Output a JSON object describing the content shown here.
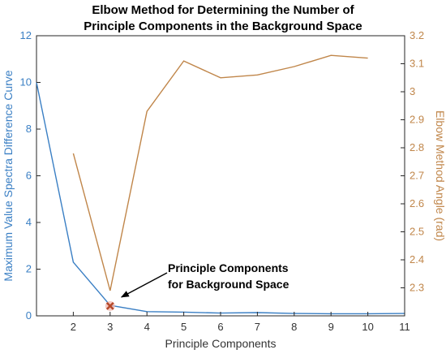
{
  "chart_data": {
    "type": "line",
    "title_lines": [
      "Elbow Method for Determining the Number of",
      "Principle Components in the Background Space"
    ],
    "xlabel": "Principle Components",
    "x_ticks": [
      2,
      3,
      4,
      5,
      6,
      7,
      8,
      9,
      10,
      11
    ],
    "xlim": [
      1,
      11
    ],
    "left_axis": {
      "label": "Maximum Value Spectra Difference Curve",
      "ylim": [
        0,
        12
      ],
      "ticks": [
        0,
        2,
        4,
        6,
        8,
        10,
        12
      ],
      "color": "#3a7fc4"
    },
    "right_axis": {
      "label": "Elbow Method Angle (rad)",
      "ylim": [
        2.2,
        3.2
      ],
      "ticks": [
        2.3,
        2.4,
        2.5,
        2.6,
        2.7,
        2.8,
        2.9,
        3,
        3.1,
        3.2
      ],
      "color": "#c0864a"
    },
    "series": [
      {
        "axis": "left",
        "color": "#3a7fc4",
        "x": [
          1,
          2,
          3,
          4,
          5,
          6,
          7,
          8,
          9,
          10,
          11
        ],
        "values": [
          10.0,
          2.3,
          0.45,
          0.18,
          0.16,
          0.12,
          0.14,
          0.1,
          0.09,
          0.09,
          0.1
        ]
      },
      {
        "axis": "right",
        "color": "#c0864a",
        "x": [
          2,
          3,
          4,
          5,
          6,
          7,
          8,
          9,
          10
        ],
        "values": [
          2.78,
          2.29,
          2.93,
          3.11,
          3.05,
          3.06,
          3.09,
          3.13,
          3.12
        ]
      }
    ],
    "marker": {
      "x": 3,
      "y": 0.42,
      "symbol": "x",
      "color": "#b5492a"
    },
    "annotation": {
      "lines": [
        "Principle Components",
        "for Background Space"
      ],
      "points_to": {
        "x": 3,
        "y": 0.42
      }
    },
    "grid": false
  }
}
